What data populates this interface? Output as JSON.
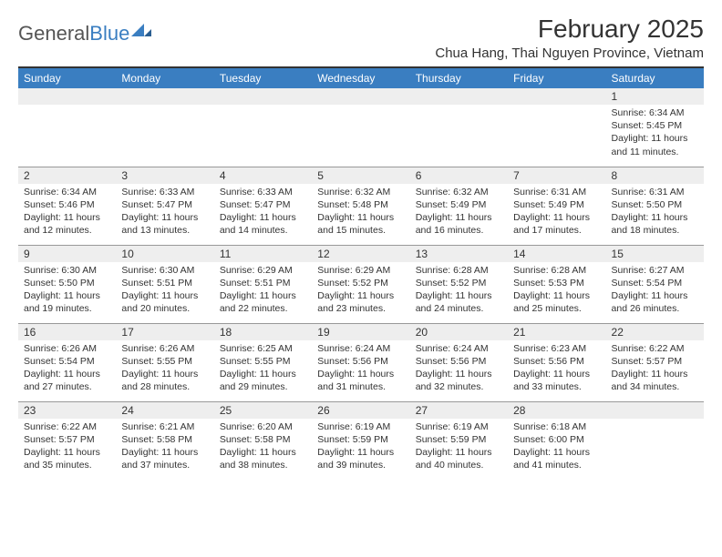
{
  "logo": {
    "text_gray": "General",
    "text_blue": "Blue"
  },
  "header": {
    "month_title": "February 2025",
    "location": "Chua Hang, Thai Nguyen Province, Vietnam"
  },
  "colors": {
    "header_bg": "#3a7ec1",
    "header_text": "#ffffff",
    "daynum_bg": "#eeeeee",
    "border": "#999999",
    "text": "#333333"
  },
  "weekdays": [
    "Sunday",
    "Monday",
    "Tuesday",
    "Wednesday",
    "Thursday",
    "Friday",
    "Saturday"
  ],
  "weeks": [
    [
      null,
      null,
      null,
      null,
      null,
      null,
      {
        "n": "1",
        "sunrise": "Sunrise: 6:34 AM",
        "sunset": "Sunset: 5:45 PM",
        "daylight": "Daylight: 11 hours and 11 minutes."
      }
    ],
    [
      {
        "n": "2",
        "sunrise": "Sunrise: 6:34 AM",
        "sunset": "Sunset: 5:46 PM",
        "daylight": "Daylight: 11 hours and 12 minutes."
      },
      {
        "n": "3",
        "sunrise": "Sunrise: 6:33 AM",
        "sunset": "Sunset: 5:47 PM",
        "daylight": "Daylight: 11 hours and 13 minutes."
      },
      {
        "n": "4",
        "sunrise": "Sunrise: 6:33 AM",
        "sunset": "Sunset: 5:47 PM",
        "daylight": "Daylight: 11 hours and 14 minutes."
      },
      {
        "n": "5",
        "sunrise": "Sunrise: 6:32 AM",
        "sunset": "Sunset: 5:48 PM",
        "daylight": "Daylight: 11 hours and 15 minutes."
      },
      {
        "n": "6",
        "sunrise": "Sunrise: 6:32 AM",
        "sunset": "Sunset: 5:49 PM",
        "daylight": "Daylight: 11 hours and 16 minutes."
      },
      {
        "n": "7",
        "sunrise": "Sunrise: 6:31 AM",
        "sunset": "Sunset: 5:49 PM",
        "daylight": "Daylight: 11 hours and 17 minutes."
      },
      {
        "n": "8",
        "sunrise": "Sunrise: 6:31 AM",
        "sunset": "Sunset: 5:50 PM",
        "daylight": "Daylight: 11 hours and 18 minutes."
      }
    ],
    [
      {
        "n": "9",
        "sunrise": "Sunrise: 6:30 AM",
        "sunset": "Sunset: 5:50 PM",
        "daylight": "Daylight: 11 hours and 19 minutes."
      },
      {
        "n": "10",
        "sunrise": "Sunrise: 6:30 AM",
        "sunset": "Sunset: 5:51 PM",
        "daylight": "Daylight: 11 hours and 20 minutes."
      },
      {
        "n": "11",
        "sunrise": "Sunrise: 6:29 AM",
        "sunset": "Sunset: 5:51 PM",
        "daylight": "Daylight: 11 hours and 22 minutes."
      },
      {
        "n": "12",
        "sunrise": "Sunrise: 6:29 AM",
        "sunset": "Sunset: 5:52 PM",
        "daylight": "Daylight: 11 hours and 23 minutes."
      },
      {
        "n": "13",
        "sunrise": "Sunrise: 6:28 AM",
        "sunset": "Sunset: 5:52 PM",
        "daylight": "Daylight: 11 hours and 24 minutes."
      },
      {
        "n": "14",
        "sunrise": "Sunrise: 6:28 AM",
        "sunset": "Sunset: 5:53 PM",
        "daylight": "Daylight: 11 hours and 25 minutes."
      },
      {
        "n": "15",
        "sunrise": "Sunrise: 6:27 AM",
        "sunset": "Sunset: 5:54 PM",
        "daylight": "Daylight: 11 hours and 26 minutes."
      }
    ],
    [
      {
        "n": "16",
        "sunrise": "Sunrise: 6:26 AM",
        "sunset": "Sunset: 5:54 PM",
        "daylight": "Daylight: 11 hours and 27 minutes."
      },
      {
        "n": "17",
        "sunrise": "Sunrise: 6:26 AM",
        "sunset": "Sunset: 5:55 PM",
        "daylight": "Daylight: 11 hours and 28 minutes."
      },
      {
        "n": "18",
        "sunrise": "Sunrise: 6:25 AM",
        "sunset": "Sunset: 5:55 PM",
        "daylight": "Daylight: 11 hours and 29 minutes."
      },
      {
        "n": "19",
        "sunrise": "Sunrise: 6:24 AM",
        "sunset": "Sunset: 5:56 PM",
        "daylight": "Daylight: 11 hours and 31 minutes."
      },
      {
        "n": "20",
        "sunrise": "Sunrise: 6:24 AM",
        "sunset": "Sunset: 5:56 PM",
        "daylight": "Daylight: 11 hours and 32 minutes."
      },
      {
        "n": "21",
        "sunrise": "Sunrise: 6:23 AM",
        "sunset": "Sunset: 5:56 PM",
        "daylight": "Daylight: 11 hours and 33 minutes."
      },
      {
        "n": "22",
        "sunrise": "Sunrise: 6:22 AM",
        "sunset": "Sunset: 5:57 PM",
        "daylight": "Daylight: 11 hours and 34 minutes."
      }
    ],
    [
      {
        "n": "23",
        "sunrise": "Sunrise: 6:22 AM",
        "sunset": "Sunset: 5:57 PM",
        "daylight": "Daylight: 11 hours and 35 minutes."
      },
      {
        "n": "24",
        "sunrise": "Sunrise: 6:21 AM",
        "sunset": "Sunset: 5:58 PM",
        "daylight": "Daylight: 11 hours and 37 minutes."
      },
      {
        "n": "25",
        "sunrise": "Sunrise: 6:20 AM",
        "sunset": "Sunset: 5:58 PM",
        "daylight": "Daylight: 11 hours and 38 minutes."
      },
      {
        "n": "26",
        "sunrise": "Sunrise: 6:19 AM",
        "sunset": "Sunset: 5:59 PM",
        "daylight": "Daylight: 11 hours and 39 minutes."
      },
      {
        "n": "27",
        "sunrise": "Sunrise: 6:19 AM",
        "sunset": "Sunset: 5:59 PM",
        "daylight": "Daylight: 11 hours and 40 minutes."
      },
      {
        "n": "28",
        "sunrise": "Sunrise: 6:18 AM",
        "sunset": "Sunset: 6:00 PM",
        "daylight": "Daylight: 11 hours and 41 minutes."
      },
      null
    ]
  ]
}
